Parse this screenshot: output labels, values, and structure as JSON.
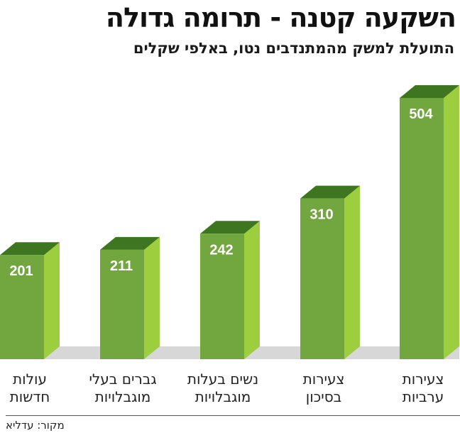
{
  "header": {
    "title": "השקעה קטנה - תרומה גדולה",
    "subtitle": "התועלת למשק מהמתנדבים נטו, באלפי שקלים"
  },
  "footer": {
    "source": "מקור: עדליא"
  },
  "colors": {
    "front": "#72a63f",
    "top": "#3d7520",
    "side": "#9dce3e",
    "floor": "#d7d7d7",
    "value_text": "#ffffff"
  },
  "chart_data": {
    "type": "bar",
    "title": "השקעה קטנה - תרומה גדולה",
    "subtitle": "התועלת למשק מהמתנדבים נטו, באלפי שקלים",
    "categories": [
      [
        "עולות",
        "חדשות"
      ],
      [
        "גברים בעלי",
        "מוגבלויות"
      ],
      [
        "נשים בעלות",
        "מוגבלויות"
      ],
      [
        "צעירות",
        "בסיכון"
      ],
      [
        "צעירות",
        "ערביות"
      ]
    ],
    "values": [
      201,
      211,
      242,
      310,
      504
    ],
    "ylim": [
      0,
      504
    ],
    "legend": "none",
    "grid": false
  }
}
